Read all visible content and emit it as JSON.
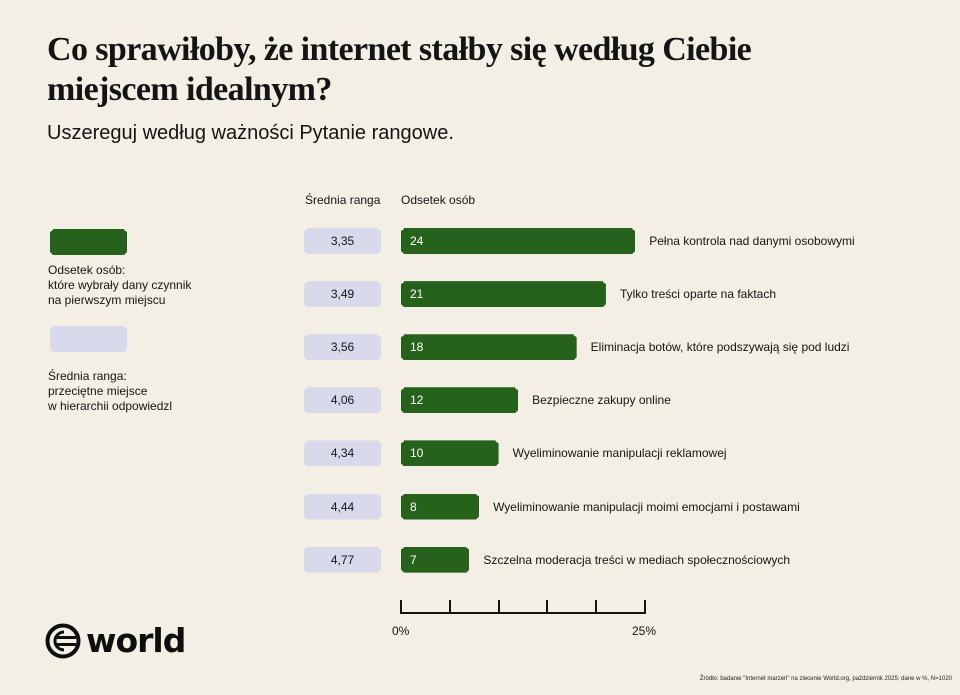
{
  "header": {
    "title": "Co sprawiłoby, że internet stałby się według Ciebie miejscem idealnym?",
    "subtitle": "Uszereguj według ważności Pytanie rangowe."
  },
  "legend": {
    "share": {
      "color": "#27621c",
      "line1": "Odsetek osób:",
      "line2": "które wybrały dany czynnik",
      "line3": "na pierwszym miejscu"
    },
    "rank": {
      "color": "#d8d9ea",
      "line1": "Średnia ranga:",
      "line2": "przeciętne miejsce",
      "line3": "w hierarchii odpowiedzl"
    }
  },
  "columns": {
    "rank": "Średnia ranga",
    "share": "Odsetek osób"
  },
  "rows": [
    {
      "rank": "3,35",
      "share": "24",
      "label": "Pełna kontrola nad danymi osobowymi"
    },
    {
      "rank": "3,49",
      "share": "21",
      "label": "Tylko treści oparte na faktach"
    },
    {
      "rank": "3,56",
      "share": "18",
      "label": "Eliminacja botów, które podszywają się pod ludzi"
    },
    {
      "rank": "4,06",
      "share": "12",
      "label": "Bezpieczne zakupy online"
    },
    {
      "rank": "4,34",
      "share": "10",
      "label": "Wyeliminowanie manipulacji reklamowej"
    },
    {
      "rank": "4,44",
      "share": "8",
      "label": "Wyeliminowanie manipulacji moimi emocjami i postawami"
    },
    {
      "rank": "4,77",
      "share": "7",
      "label": "Szczelna moderacja treści w mediach społecznościowych"
    }
  ],
  "axis": {
    "min_label": "0%",
    "max_label": "25%"
  },
  "logo": {
    "icon": "world-logo-icon",
    "text": "world"
  },
  "footer": {
    "source": "Źródło: badanie \"Internet marzeń\" na zlecenie World.org, październik 2025; dane w %, N=1020"
  },
  "chart_data": {
    "type": "bar",
    "orientation": "horizontal",
    "title": "Co sprawiłoby, że internet stałby się według Ciebie miejscem idealnym?",
    "subtitle": "Uszereguj według ważności Pytanie rangowe.",
    "categories": [
      "Pełna kontrola nad danymi osobowymi",
      "Tylko treści oparte na faktach",
      "Eliminacja botów, które podszywają się pod ludzi",
      "Bezpieczne zakupy online",
      "Wyeliminowanie manipulacji reklamowej",
      "Wyeliminowanie manipulacji moimi emocjami i postawami",
      "Szczelna moderacja treści w mediach społecznościowych"
    ],
    "series": [
      {
        "name": "Odsetek osób",
        "values": [
          24,
          21,
          18,
          12,
          10,
          8,
          7
        ],
        "color": "#27621c"
      },
      {
        "name": "Średnia ranga",
        "values": [
          3.35,
          3.49,
          3.56,
          4.06,
          4.34,
          4.44,
          4.77
        ],
        "color": "#d8d9ea"
      }
    ],
    "xlabel": "",
    "ylabel": "",
    "xlim": [
      0,
      25
    ],
    "x_ticks": [
      0,
      5,
      10,
      15,
      20,
      25
    ],
    "x_tick_labels_shown": [
      "0%",
      "25%"
    ],
    "grid": false,
    "legend_position": "left",
    "source": "Źródło: badanie \"Internet marzeń\" na zlecenie World.org, październik 2025; dane w %, N=1020"
  }
}
